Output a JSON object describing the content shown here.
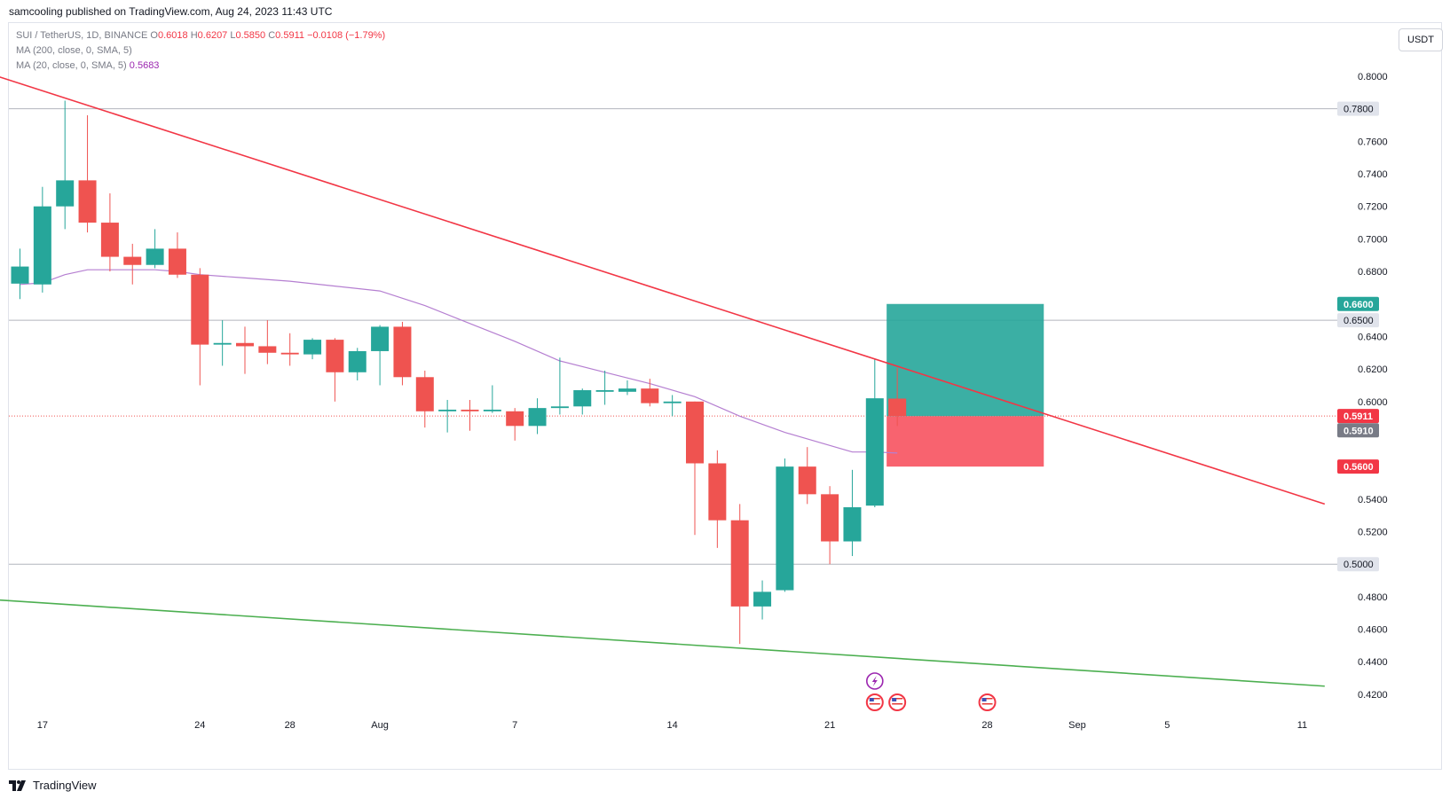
{
  "header": {
    "published_text": "samcooling published on TradingView.com, Aug 24, 2023 11:43 UTC"
  },
  "legend": {
    "symbol": "SUI / TetherUS, 1D, BINANCE",
    "o_label": "O",
    "o_value": "0.6018",
    "h_label": "H",
    "h_value": "0.6207",
    "l_label": "L",
    "l_value": "0.5850",
    "c_label": "C",
    "c_value": "0.5911",
    "change": "−0.0108 (−1.79%)",
    "ma200": "MA (200, close, 0, SMA, 5)",
    "ma20": "MA (20, close, 0, SMA, 5)",
    "ma20_value": "0.5683"
  },
  "currency_button": "USDT",
  "footer": {
    "brand": "TradingView"
  },
  "colors": {
    "up": "#26a69a",
    "down": "#ef5350",
    "ma20": "#b57fd1",
    "trend_red": "#f23645",
    "trend_green": "#4caf50",
    "target_box": "#26a69a",
    "stop_box": "#f7525f"
  },
  "chart_data": {
    "type": "candlestick",
    "title": "SUI / TetherUS, 1D, BINANCE",
    "interval": "1D",
    "x_axis_labels": [
      {
        "date": "2023-07-17",
        "label": "17"
      },
      {
        "date": "2023-07-24",
        "label": "24"
      },
      {
        "date": "2023-07-28",
        "label": "28"
      },
      {
        "date": "2023-08-01",
        "label": "Aug"
      },
      {
        "date": "2023-08-07",
        "label": "7"
      },
      {
        "date": "2023-08-14",
        "label": "14"
      },
      {
        "date": "2023-08-21",
        "label": "21"
      },
      {
        "date": "2023-08-28",
        "label": "28"
      },
      {
        "date": "2023-09-01",
        "label": "Sep"
      },
      {
        "date": "2023-09-05",
        "label": "5"
      },
      {
        "date": "2023-09-11",
        "label": "11"
      }
    ],
    "y_ticks": [
      "0.8000",
      "0.7600",
      "0.7400",
      "0.7200",
      "0.7000",
      "0.6800",
      "0.6400",
      "0.6200",
      "0.6000",
      "0.5400",
      "0.5200",
      "0.4800",
      "0.4600",
      "0.4400",
      "0.4200"
    ],
    "ylim": [
      0.412,
      0.824
    ],
    "candles": [
      {
        "date": "2023-07-16",
        "o": 0.6725,
        "h": 0.694,
        "l": 0.663,
        "c": 0.683
      },
      {
        "date": "2023-07-17",
        "o": 0.672,
        "h": 0.732,
        "l": 0.667,
        "c": 0.72
      },
      {
        "date": "2023-07-18",
        "o": 0.72,
        "h": 0.785,
        "l": 0.706,
        "c": 0.736
      },
      {
        "date": "2023-07-19",
        "o": 0.736,
        "h": 0.776,
        "l": 0.704,
        "c": 0.71
      },
      {
        "date": "2023-07-20",
        "o": 0.71,
        "h": 0.728,
        "l": 0.68,
        "c": 0.689
      },
      {
        "date": "2023-07-21",
        "o": 0.689,
        "h": 0.697,
        "l": 0.672,
        "c": 0.684
      },
      {
        "date": "2023-07-22",
        "o": 0.684,
        "h": 0.706,
        "l": 0.682,
        "c": 0.694
      },
      {
        "date": "2023-07-23",
        "o": 0.694,
        "h": 0.704,
        "l": 0.676,
        "c": 0.678
      },
      {
        "date": "2023-07-24",
        "o": 0.678,
        "h": 0.682,
        "l": 0.61,
        "c": 0.635
      },
      {
        "date": "2023-07-25",
        "o": 0.635,
        "h": 0.65,
        "l": 0.622,
        "c": 0.636
      },
      {
        "date": "2023-07-26",
        "o": 0.636,
        "h": 0.646,
        "l": 0.617,
        "c": 0.634
      },
      {
        "date": "2023-07-27",
        "o": 0.634,
        "h": 0.65,
        "l": 0.623,
        "c": 0.63
      },
      {
        "date": "2023-07-28",
        "o": 0.63,
        "h": 0.642,
        "l": 0.622,
        "c": 0.629
      },
      {
        "date": "2023-07-29",
        "o": 0.629,
        "h": 0.639,
        "l": 0.626,
        "c": 0.638
      },
      {
        "date": "2023-07-30",
        "o": 0.638,
        "h": 0.639,
        "l": 0.6,
        "c": 0.618
      },
      {
        "date": "2023-07-31",
        "o": 0.618,
        "h": 0.633,
        "l": 0.613,
        "c": 0.631
      },
      {
        "date": "2023-08-01",
        "o": 0.631,
        "h": 0.647,
        "l": 0.61,
        "c": 0.646
      },
      {
        "date": "2023-08-02",
        "o": 0.646,
        "h": 0.649,
        "l": 0.61,
        "c": 0.615
      },
      {
        "date": "2023-08-03",
        "o": 0.615,
        "h": 0.619,
        "l": 0.584,
        "c": 0.594
      },
      {
        "date": "2023-08-04",
        "o": 0.594,
        "h": 0.601,
        "l": 0.581,
        "c": 0.595
      },
      {
        "date": "2023-08-05",
        "o": 0.595,
        "h": 0.601,
        "l": 0.582,
        "c": 0.594
      },
      {
        "date": "2023-08-06",
        "o": 0.594,
        "h": 0.61,
        "l": 0.593,
        "c": 0.595
      },
      {
        "date": "2023-08-07",
        "o": 0.594,
        "h": 0.596,
        "l": 0.576,
        "c": 0.585
      },
      {
        "date": "2023-08-08",
        "o": 0.585,
        "h": 0.602,
        "l": 0.58,
        "c": 0.596
      },
      {
        "date": "2023-08-09",
        "o": 0.596,
        "h": 0.627,
        "l": 0.592,
        "c": 0.597
      },
      {
        "date": "2023-08-10",
        "o": 0.597,
        "h": 0.608,
        "l": 0.592,
        "c": 0.607
      },
      {
        "date": "2023-08-11",
        "o": 0.606,
        "h": 0.619,
        "l": 0.598,
        "c": 0.607
      },
      {
        "date": "2023-08-12",
        "o": 0.606,
        "h": 0.613,
        "l": 0.604,
        "c": 0.608
      },
      {
        "date": "2023-08-13",
        "o": 0.608,
        "h": 0.614,
        "l": 0.597,
        "c": 0.599
      },
      {
        "date": "2023-08-14",
        "o": 0.599,
        "h": 0.604,
        "l": 0.591,
        "c": 0.6
      },
      {
        "date": "2023-08-15",
        "o": 0.6,
        "h": 0.6,
        "l": 0.518,
        "c": 0.562
      },
      {
        "date": "2023-08-16",
        "o": 0.562,
        "h": 0.57,
        "l": 0.51,
        "c": 0.527
      },
      {
        "date": "2023-08-17",
        "o": 0.527,
        "h": 0.537,
        "l": 0.451,
        "c": 0.474
      },
      {
        "date": "2023-08-18",
        "o": 0.474,
        "h": 0.49,
        "l": 0.466,
        "c": 0.483
      },
      {
        "date": "2023-08-19",
        "o": 0.484,
        "h": 0.565,
        "l": 0.483,
        "c": 0.56
      },
      {
        "date": "2023-08-20",
        "o": 0.56,
        "h": 0.572,
        "l": 0.537,
        "c": 0.543
      },
      {
        "date": "2023-08-21",
        "o": 0.543,
        "h": 0.548,
        "l": 0.5,
        "c": 0.514
      },
      {
        "date": "2023-08-22",
        "o": 0.514,
        "h": 0.558,
        "l": 0.505,
        "c": 0.535
      },
      {
        "date": "2023-08-23",
        "o": 0.536,
        "h": 0.626,
        "l": 0.535,
        "c": 0.602
      },
      {
        "date": "2023-08-24",
        "o": 0.6018,
        "h": 0.6207,
        "l": 0.585,
        "c": 0.5911
      }
    ],
    "ma20": [
      {
        "date": "2023-07-16",
        "v": 0.672
      },
      {
        "date": "2023-07-17",
        "v": 0.673
      },
      {
        "date": "2023-07-18",
        "v": 0.678
      },
      {
        "date": "2023-07-19",
        "v": 0.681
      },
      {
        "date": "2023-07-20",
        "v": 0.681
      },
      {
        "date": "2023-07-21",
        "v": 0.681
      },
      {
        "date": "2023-07-22",
        "v": 0.681
      },
      {
        "date": "2023-07-23",
        "v": 0.68
      },
      {
        "date": "2023-07-24",
        "v": 0.678
      },
      {
        "date": "2023-07-26",
        "v": 0.676
      },
      {
        "date": "2023-07-28",
        "v": 0.674
      },
      {
        "date": "2023-07-30",
        "v": 0.671
      },
      {
        "date": "2023-08-01",
        "v": 0.668
      },
      {
        "date": "2023-08-03",
        "v": 0.659
      },
      {
        "date": "2023-08-05",
        "v": 0.648
      },
      {
        "date": "2023-08-07",
        "v": 0.637
      },
      {
        "date": "2023-08-09",
        "v": 0.625
      },
      {
        "date": "2023-08-11",
        "v": 0.618
      },
      {
        "date": "2023-08-13",
        "v": 0.611
      },
      {
        "date": "2023-08-15",
        "v": 0.603
      },
      {
        "date": "2023-08-17",
        "v": 0.591
      },
      {
        "date": "2023-08-19",
        "v": 0.581
      },
      {
        "date": "2023-08-21",
        "v": 0.573
      },
      {
        "date": "2023-08-22",
        "v": 0.569
      },
      {
        "date": "2023-08-23",
        "v": 0.569
      },
      {
        "date": "2023-08-24",
        "v": 0.5683
      }
    ],
    "trendlines": [
      {
        "name": "resistance",
        "color": "#f23645",
        "from": {
          "date": "2023-07-15",
          "v": 0.8
        },
        "to": {
          "date": "2023-09-12",
          "v": 0.537
        }
      },
      {
        "name": "support",
        "color": "#4caf50",
        "from": {
          "date": "2023-07-15",
          "v": 0.478
        },
        "to": {
          "date": "2023-09-12",
          "v": 0.425
        }
      }
    ],
    "horizontal_lines": [
      {
        "v": 0.78,
        "label": "0.7800"
      },
      {
        "v": 0.65,
        "label": "0.6500"
      },
      {
        "v": 0.5,
        "label": "0.5000"
      }
    ],
    "position": {
      "type": "long",
      "start_date": "2023-08-24",
      "end_date": "2023-08-30",
      "entry": 0.591,
      "target": 0.66,
      "stop": 0.56
    },
    "price_labels": [
      {
        "v": 0.66,
        "label": "0.6600",
        "bg": "#26a69a",
        "fg": "#ffffff"
      },
      {
        "v": 0.5911,
        "label": "0.5911",
        "bg": "#f23645",
        "fg": "#ffffff"
      },
      {
        "v": 0.591,
        "label": "0.5910",
        "bg": "#787b86",
        "fg": "#ffffff"
      },
      {
        "v": 0.56,
        "label": "0.5600",
        "bg": "#f23645",
        "fg": "#ffffff"
      }
    ],
    "last_price": 0.5911,
    "event_markers": [
      {
        "date": "2023-08-23",
        "kind": "earnings-bolt-icon"
      },
      {
        "date": "2023-08-23",
        "kind": "us-flag-icon"
      },
      {
        "date": "2023-08-24",
        "kind": "us-flag-icon"
      },
      {
        "date": "2023-08-28",
        "kind": "us-flag-icon"
      }
    ]
  }
}
